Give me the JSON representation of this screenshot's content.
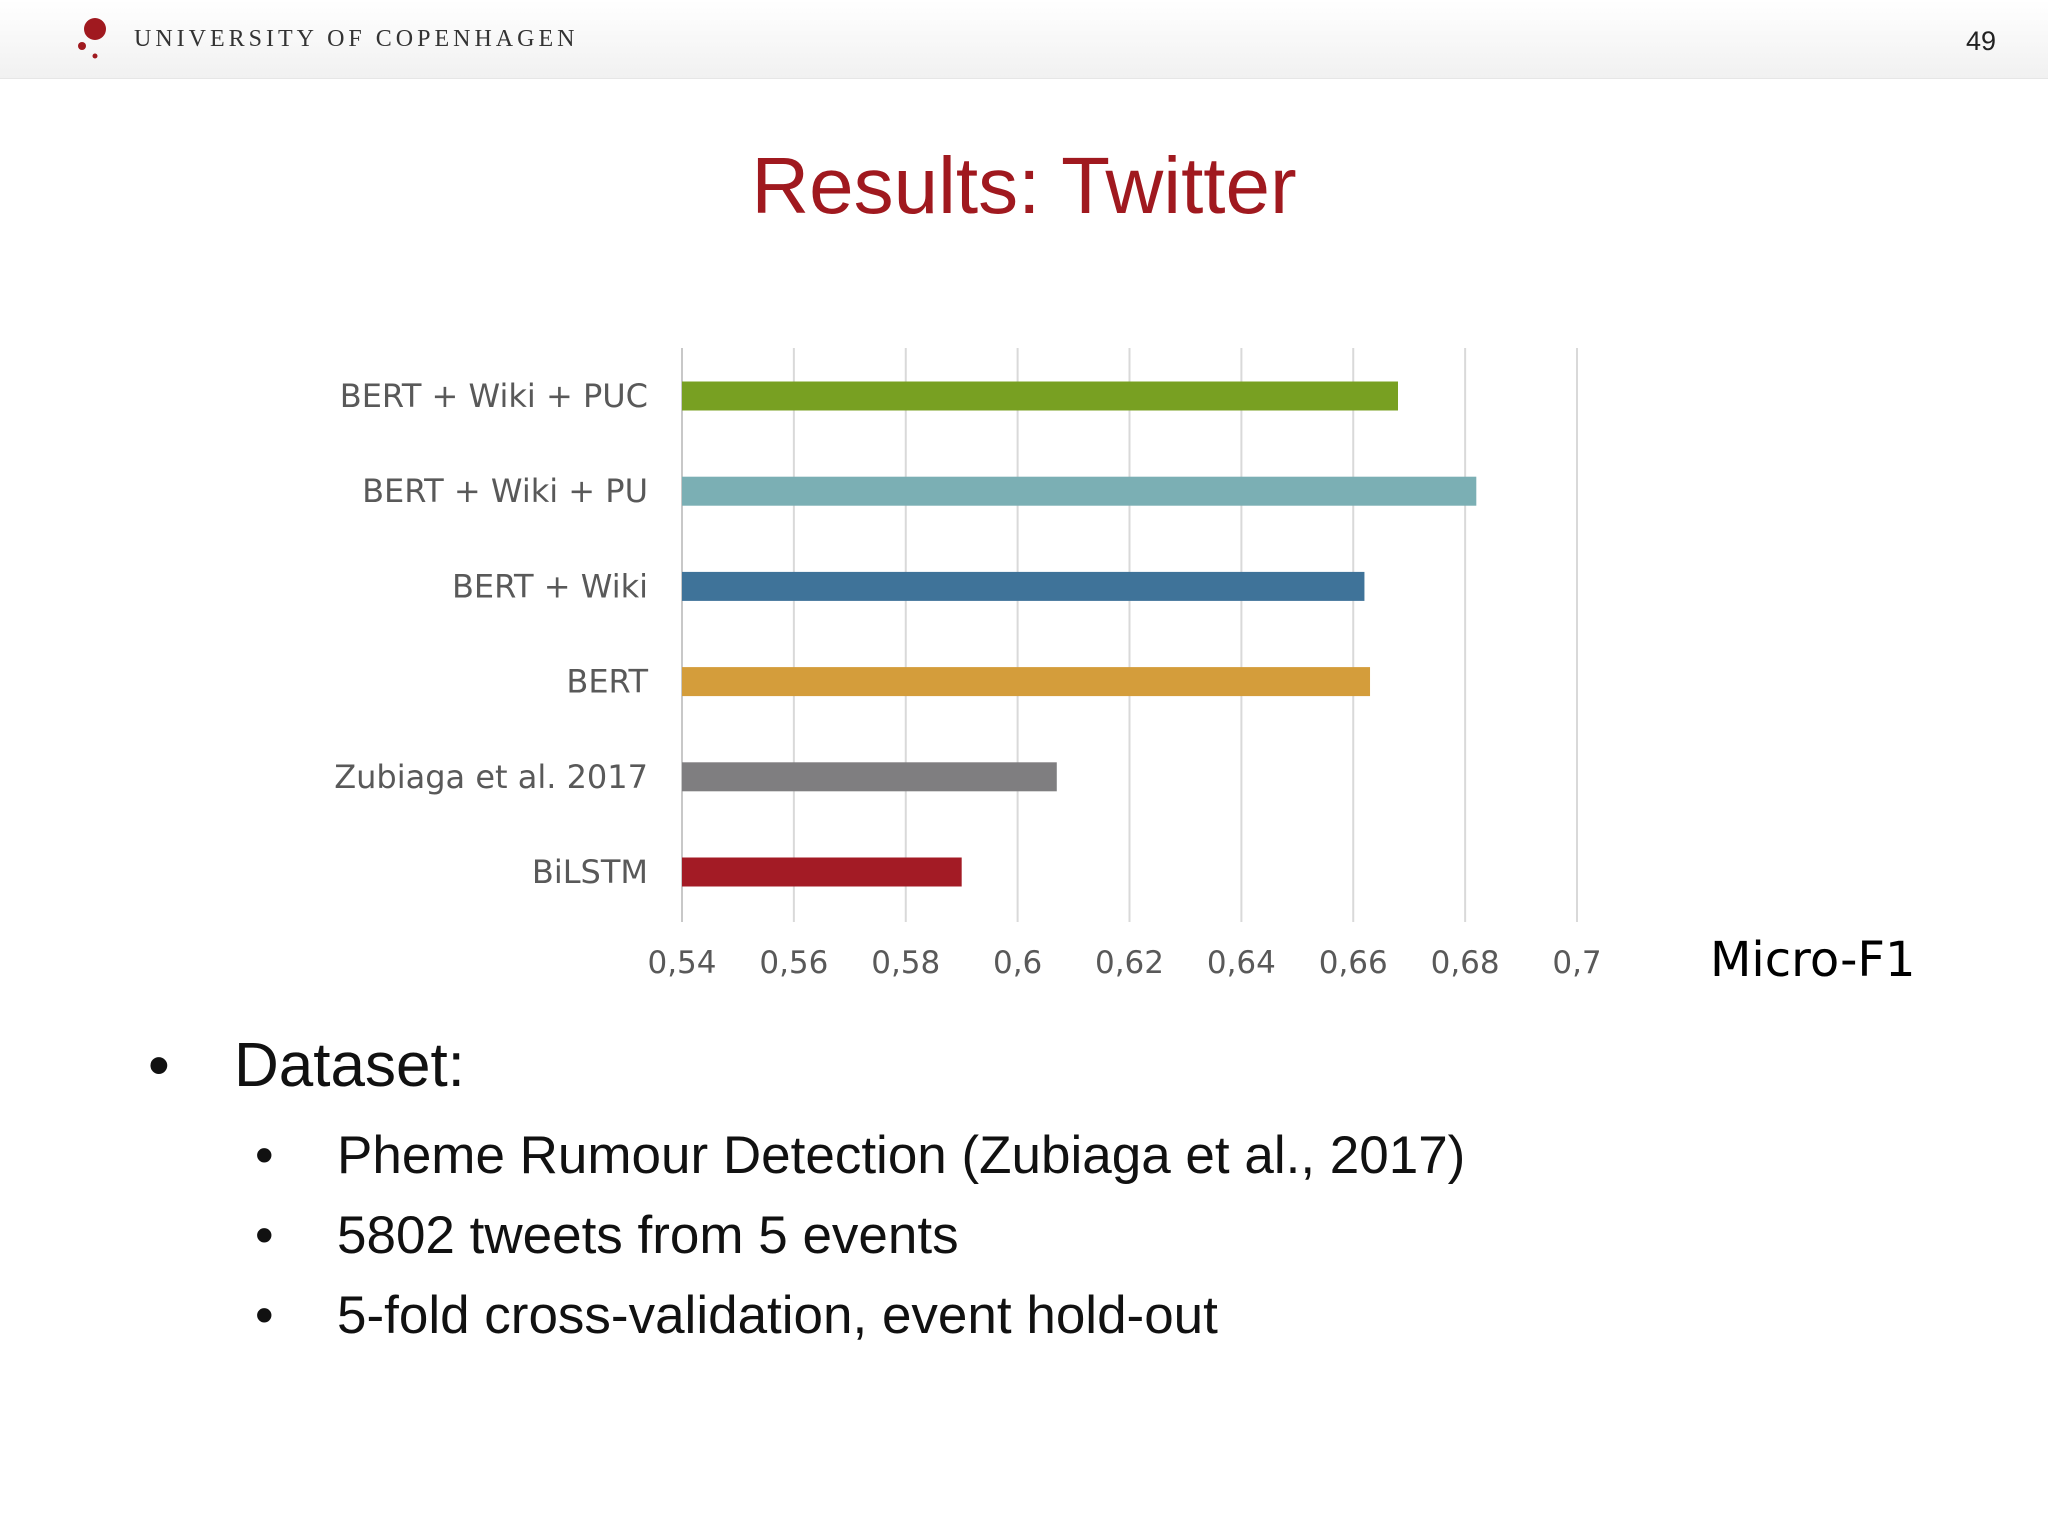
{
  "header": {
    "university": "UNIVERSITY OF COPENHAGEN",
    "page_number": "49",
    "logo_icon": "university-seal-icon",
    "brand_color": "#a0191f"
  },
  "slide": {
    "title": "Results: Twitter"
  },
  "chart_data": {
    "type": "bar",
    "orientation": "horizontal",
    "title": "",
    "categories": [
      "BERT + Wiki + PUC",
      "BERT + Wiki + PU",
      "BERT + Wiki",
      "BERT",
      "Zubiaga et al. 2017",
      "BiLSTM"
    ],
    "values": [
      0.668,
      0.682,
      0.662,
      0.663,
      0.607,
      0.59
    ],
    "colors": [
      "#78a022",
      "#7bafb4",
      "#3f7399",
      "#d49d3b",
      "#7f7e80",
      "#a31b25"
    ],
    "xlabel": "Micro-F1",
    "ylabel": "",
    "xlim": [
      0.54,
      0.7
    ],
    "xticks": [
      0.54,
      0.56,
      0.58,
      0.6,
      0.62,
      0.64,
      0.66,
      0.68,
      0.7
    ],
    "xtick_labels": [
      "0,54",
      "0,56",
      "0,58",
      "0,6",
      "0,62",
      "0,64",
      "0,66",
      "0,68",
      "0,7"
    ],
    "grid": "vertical",
    "legend": "none"
  },
  "bullets": {
    "heading": "Dataset:",
    "items": [
      "Pheme Rumour Detection (Zubiaga et al., 2017)",
      "5802 tweets from 5 events",
      "5-fold cross-validation, event hold-out"
    ],
    "bullet_char": "•"
  }
}
